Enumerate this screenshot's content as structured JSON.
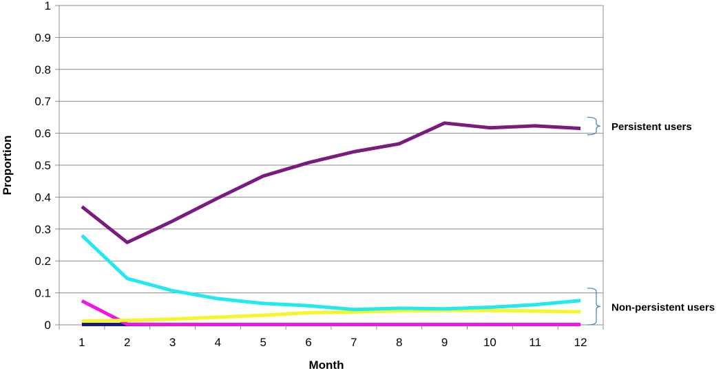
{
  "chart_data": {
    "type": "line",
    "xlabel": "Month",
    "ylabel": "Proportion",
    "x": [
      1,
      2,
      3,
      4,
      5,
      6,
      7,
      8,
      9,
      10,
      11,
      12
    ],
    "yticks": [
      "0",
      "0.1",
      "0.2",
      "0.3",
      "0.4",
      "0.5",
      "0.6",
      "0.7",
      "0.8",
      "0.9",
      "1"
    ],
    "ylim": [
      0,
      1
    ],
    "grid": true,
    "series": [
      {
        "color": "#7B1A7F",
        "values": [
          0.37,
          0.258,
          0.325,
          0.397,
          0.466,
          0.508,
          0.542,
          0.567,
          0.632,
          0.617,
          0.623,
          0.615
        ]
      },
      {
        "color": "#22E8F0",
        "values": [
          0.28,
          0.145,
          0.107,
          0.082,
          0.067,
          0.06,
          0.048,
          0.052,
          0.05,
          0.055,
          0.063,
          0.076
        ]
      },
      {
        "color": "#F5F52A",
        "values": [
          0.012,
          0.014,
          0.018,
          0.024,
          0.03,
          0.038,
          0.04,
          0.044,
          0.045,
          0.045,
          0.043,
          0.041
        ]
      },
      {
        "color": "#F018E0",
        "values": [
          0.075,
          0.002,
          0.001,
          0.001,
          0.001,
          0.001,
          0.001,
          0.001,
          0.001,
          0.001,
          0.001,
          0.001
        ]
      },
      {
        "color": "#1C1C6E",
        "values": [
          0.001,
          0.001,
          0.001,
          0.001,
          0.001,
          0.001,
          0.001,
          0.001,
          0.001,
          0.001,
          0.001,
          0.001
        ]
      }
    ],
    "annotations": [
      {
        "label": "Persistent users",
        "bracket_color": "#4A86C8",
        "y_range": [
          0.595,
          0.65
        ]
      },
      {
        "label": "Non-persistent users",
        "bracket_color": "#4A86C8",
        "y_range": [
          0.0,
          0.115
        ]
      }
    ]
  }
}
